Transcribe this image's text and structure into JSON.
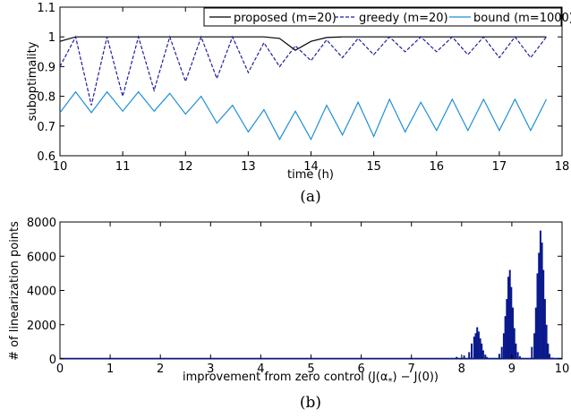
{
  "chart_data": [
    {
      "type": "line",
      "caption": "(a)",
      "xlabel": "time (h)",
      "ylabel": "suboptimality",
      "xlim": [
        10,
        18
      ],
      "ylim": [
        0.6,
        1.1
      ],
      "xticks": [
        "10",
        "11",
        "12",
        "13",
        "14",
        "15",
        "16",
        "17",
        "18"
      ],
      "yticks": [
        "0.6",
        "0.7",
        "0.8",
        "0.9",
        "1",
        "1.1"
      ],
      "legend_position": "top-right",
      "series": [
        {
          "name": "proposed (m=20)",
          "color": "#000000",
          "style": "solid",
          "x": [
            10,
            10.25,
            10.5,
            10.75,
            11,
            11.25,
            11.5,
            11.75,
            12,
            12.25,
            12.5,
            12.75,
            13,
            13.25,
            13.5,
            13.75,
            14,
            14.25,
            14.5,
            14.75,
            15,
            15.25,
            15.5,
            15.75,
            16,
            16.25,
            16.5,
            16.75,
            17,
            17.25,
            17.5,
            17.75
          ],
          "y": [
            0.985,
            1.0,
            1.0,
            1.0,
            1.0,
            1.0,
            1.0,
            1.0,
            1.0,
            1.0,
            1.0,
            1.0,
            1.0,
            1.0,
            0.995,
            0.955,
            0.985,
            0.998,
            1.0,
            1.0,
            1.0,
            1.0,
            1.0,
            1.0,
            1.0,
            1.0,
            1.0,
            1.0,
            1.0,
            1.0,
            1.0,
            1.0
          ]
        },
        {
          "name": "greedy (m=20)",
          "color": "#1f1fa0",
          "style": "dashed",
          "x": [
            10,
            10.25,
            10.5,
            10.75,
            11,
            11.25,
            11.5,
            11.75,
            12,
            12.25,
            12.5,
            12.75,
            13,
            13.25,
            13.5,
            13.75,
            14,
            14.25,
            14.5,
            14.75,
            15,
            15.25,
            15.5,
            15.75,
            16,
            16.25,
            16.5,
            16.75,
            17,
            17.25,
            17.5,
            17.75
          ],
          "y": [
            0.9,
            1.0,
            0.77,
            1.0,
            0.8,
            1.0,
            0.82,
            1.0,
            0.85,
            1.0,
            0.86,
            1.0,
            0.88,
            0.98,
            0.9,
            0.97,
            0.92,
            0.99,
            0.93,
            0.995,
            0.94,
            1.0,
            0.95,
            1.0,
            0.95,
            1.0,
            0.94,
            1.0,
            0.93,
            1.0,
            0.93,
            1.0
          ]
        },
        {
          "name": "bound (m=1000)",
          "color": "#1f8fd8",
          "style": "solid",
          "x": [
            10,
            10.25,
            10.5,
            10.75,
            11,
            11.25,
            11.5,
            11.75,
            12,
            12.25,
            12.5,
            12.75,
            13,
            13.25,
            13.5,
            13.75,
            14,
            14.25,
            14.5,
            14.75,
            15,
            15.25,
            15.5,
            15.75,
            16,
            16.25,
            16.5,
            16.75,
            17,
            17.25,
            17.5,
            17.75
          ],
          "y": [
            0.745,
            0.815,
            0.745,
            0.815,
            0.75,
            0.815,
            0.75,
            0.81,
            0.74,
            0.8,
            0.71,
            0.77,
            0.68,
            0.755,
            0.655,
            0.75,
            0.655,
            0.77,
            0.67,
            0.78,
            0.665,
            0.79,
            0.68,
            0.78,
            0.685,
            0.79,
            0.685,
            0.79,
            0.685,
            0.79,
            0.685,
            0.79
          ]
        }
      ]
    },
    {
      "type": "bar",
      "caption": "(b)",
      "xlabel": "improvement from zero control (J(α",
      "xlabel_sub": "*",
      "xlabel_end": ") − J(0))",
      "ylabel": "# of linearization points",
      "xlim": [
        0,
        10
      ],
      "ylim": [
        0,
        8000
      ],
      "xticks": [
        "0",
        "1",
        "2",
        "3",
        "4",
        "5",
        "6",
        "7",
        "8",
        "9",
        "10"
      ],
      "yticks": [
        "0",
        "2000",
        "4000",
        "6000",
        "8000"
      ],
      "color": "#0a1a8c",
      "x": [
        7.55,
        7.9,
        8.05,
        8.15,
        8.2,
        8.25,
        8.28,
        8.31,
        8.34,
        8.37,
        8.4,
        8.43,
        8.47,
        8.5,
        8.55,
        8.75,
        8.8,
        8.84,
        8.87,
        8.9,
        8.93,
        8.96,
        8.99,
        9.02,
        9.05,
        9.08,
        9.12,
        9.16,
        9.2,
        9.25,
        9.4,
        9.45,
        9.48,
        9.51,
        9.54,
        9.57,
        9.6,
        9.63,
        9.66,
        9.69,
        9.72,
        9.75,
        9.8
      ],
      "y": [
        50,
        120,
        200,
        400,
        900,
        1300,
        1500,
        1850,
        1600,
        1200,
        900,
        500,
        250,
        120,
        60,
        300,
        700,
        1500,
        2500,
        3500,
        4800,
        5200,
        4200,
        3000,
        1800,
        900,
        400,
        150,
        60,
        30,
        700,
        1500,
        3000,
        5000,
        6200,
        7500,
        6800,
        5200,
        3500,
        2000,
        900,
        300,
        80
      ]
    }
  ]
}
